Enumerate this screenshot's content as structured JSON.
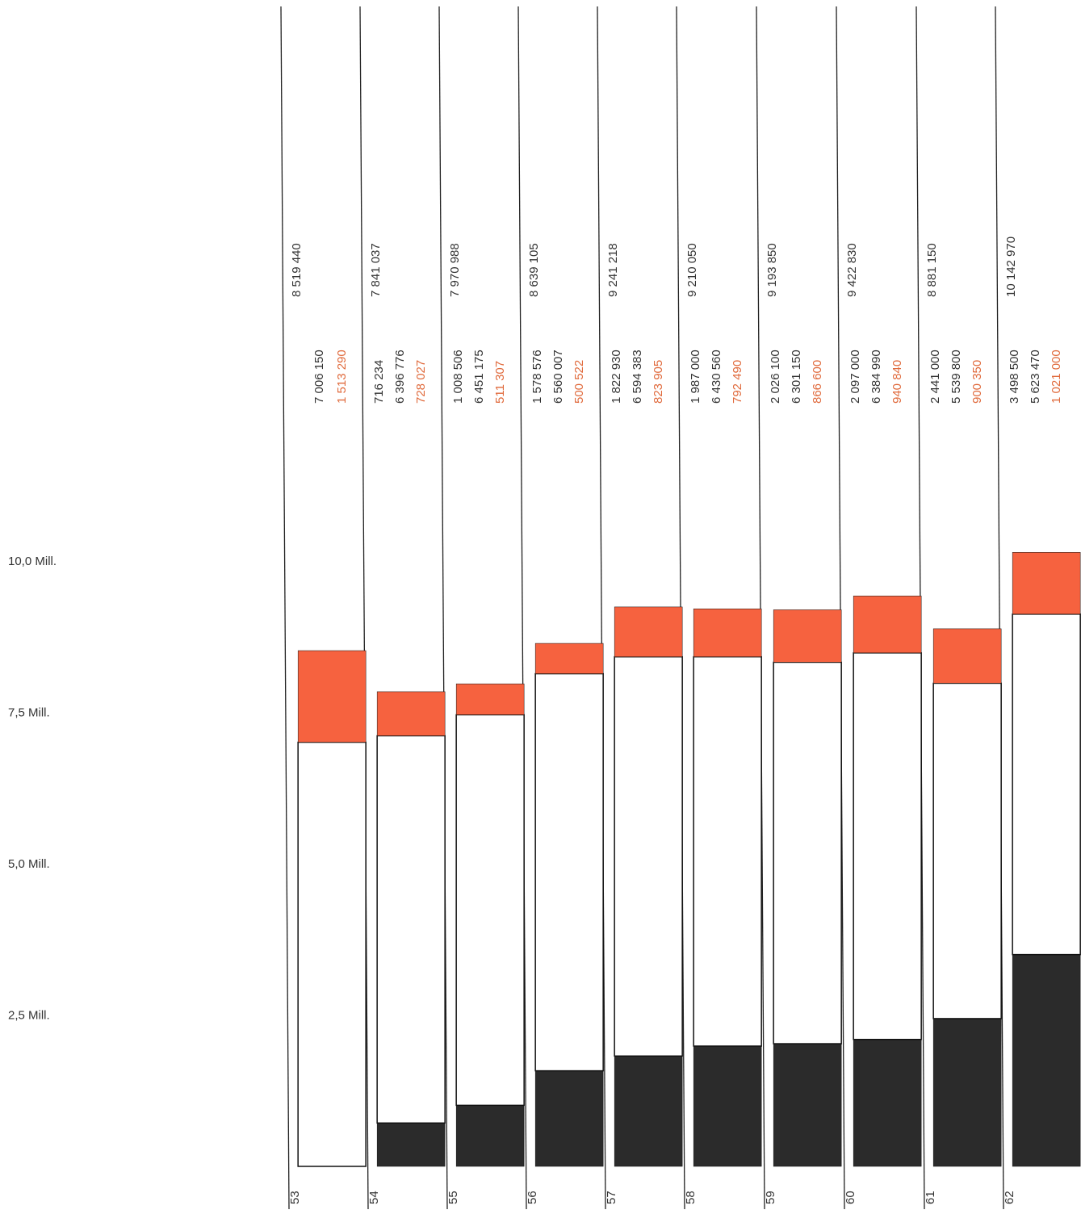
{
  "chart_data": {
    "type": "bar",
    "stacked": true,
    "ylim": [
      0,
      11000000
    ],
    "y_ticks": [
      {
        "value": 2500000,
        "label": "2,5 Mill."
      },
      {
        "value": 5000000,
        "label": "5,0 Mill."
      },
      {
        "value": 7500000,
        "label": "7,5 Mill."
      },
      {
        "value": 10000000,
        "label": "10,0 Mill."
      }
    ],
    "categories": [
      "53",
      "54",
      "55",
      "56",
      "57",
      "58",
      "59",
      "60",
      "61",
      "62"
    ],
    "totals": [
      8519440,
      7841037,
      7970988,
      8639105,
      9241218,
      9210050,
      9193850,
      9422830,
      8881150,
      10142970
    ],
    "totals_labels": [
      "8 519 440",
      "7 841 037",
      "7 970 988",
      "8 639 105",
      "9 241 218",
      "9 210 050",
      "9 193 850",
      "9 422 830",
      "8 881 150",
      "10 142 970"
    ],
    "series": [
      {
        "color": "#2b2b2b",
        "values": [
          0,
          716234,
          1008506,
          1578576,
          1822930,
          1987000,
          2026100,
          2097000,
          2441000,
          3498500
        ],
        "labels": [
          "",
          "716 234",
          "1 008 506",
          "1 578 576",
          "1 822 930",
          "1 987 000",
          "2 026 100",
          "2 097 000",
          "2 441 000",
          "3 498 500"
        ]
      },
      {
        "color": "#ffffff",
        "values": [
          7006150,
          6396776,
          6451175,
          6560007,
          6594383,
          6430560,
          6301150,
          6384990,
          5539800,
          5623470
        ],
        "labels": [
          "7 006 150",
          "6 396 776",
          "6 451 175",
          "6 560 007",
          "6 594 383",
          "6 430 560",
          "6 301 150",
          "6 384 990",
          "5 539 800",
          "5 623 470"
        ]
      },
      {
        "color": "#f6623f",
        "values": [
          1513290,
          728027,
          511307,
          500522,
          823905,
          792490,
          866600,
          940840,
          900350,
          1021000
        ],
        "labels": [
          "1 513 290",
          "728 027",
          "511 307",
          "500 522",
          "823 905",
          "792 490",
          "866 600",
          "940 840",
          "900 350",
          "1 021 000"
        ]
      }
    ],
    "label_color": "#e06a3c",
    "grid": false,
    "legend": "none"
  }
}
